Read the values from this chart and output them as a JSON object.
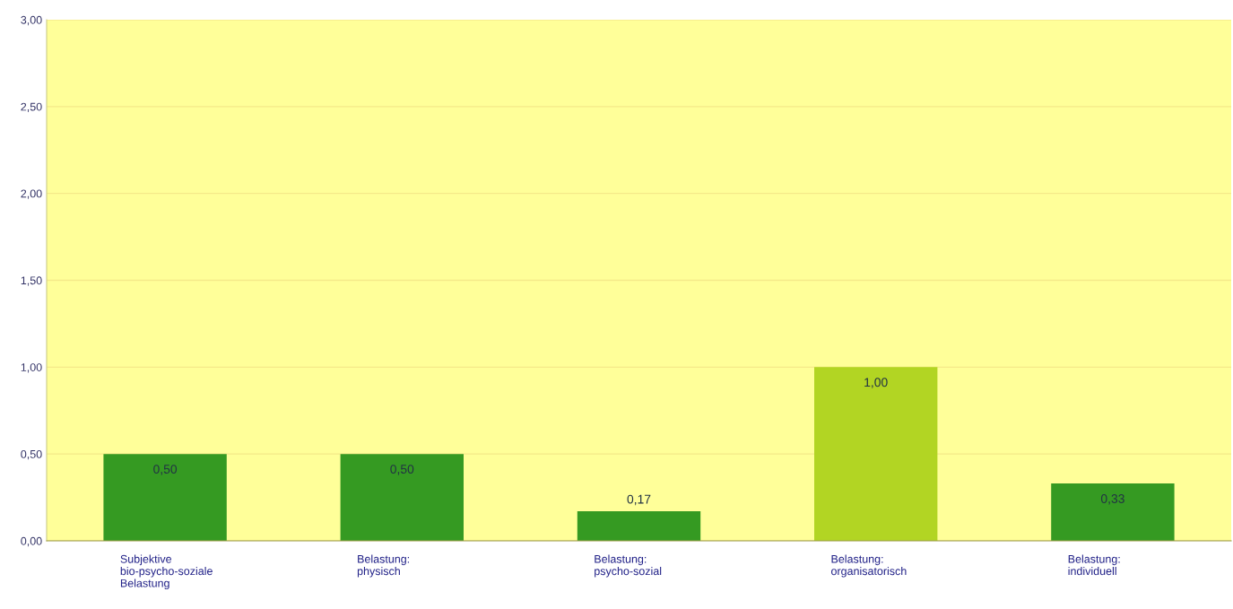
{
  "chart_data": {
    "type": "bar",
    "categories": [
      "Subjektive\nbio-psycho-soziale\nBelastung",
      "Belastung:\nphysisch",
      "Belastung:\npsycho-sozial",
      "Belastung:\norganisatorisch",
      "Belastung:\nindividuell"
    ],
    "values": [
      0.5,
      0.5,
      0.17,
      1.0,
      0.33
    ],
    "colors": [
      "#359a22",
      "#359a22",
      "#359a22",
      "#b2d523",
      "#359a22"
    ],
    "value_labels": [
      "0,50",
      "0,50",
      "0,17",
      "1,00",
      "0,33"
    ],
    "ylim": [
      0,
      3
    ],
    "yticks": [
      {
        "value": 0,
        "label": "0,00"
      },
      {
        "value": 0.5,
        "label": "0,50"
      },
      {
        "value": 1,
        "label": "1,00"
      },
      {
        "value": 1.5,
        "label": "1,50"
      },
      {
        "value": 2,
        "label": "2,00"
      },
      {
        "value": 2.5,
        "label": "2,50"
      },
      {
        "value": 3,
        "label": "3,00"
      }
    ],
    "grid": "y"
  }
}
